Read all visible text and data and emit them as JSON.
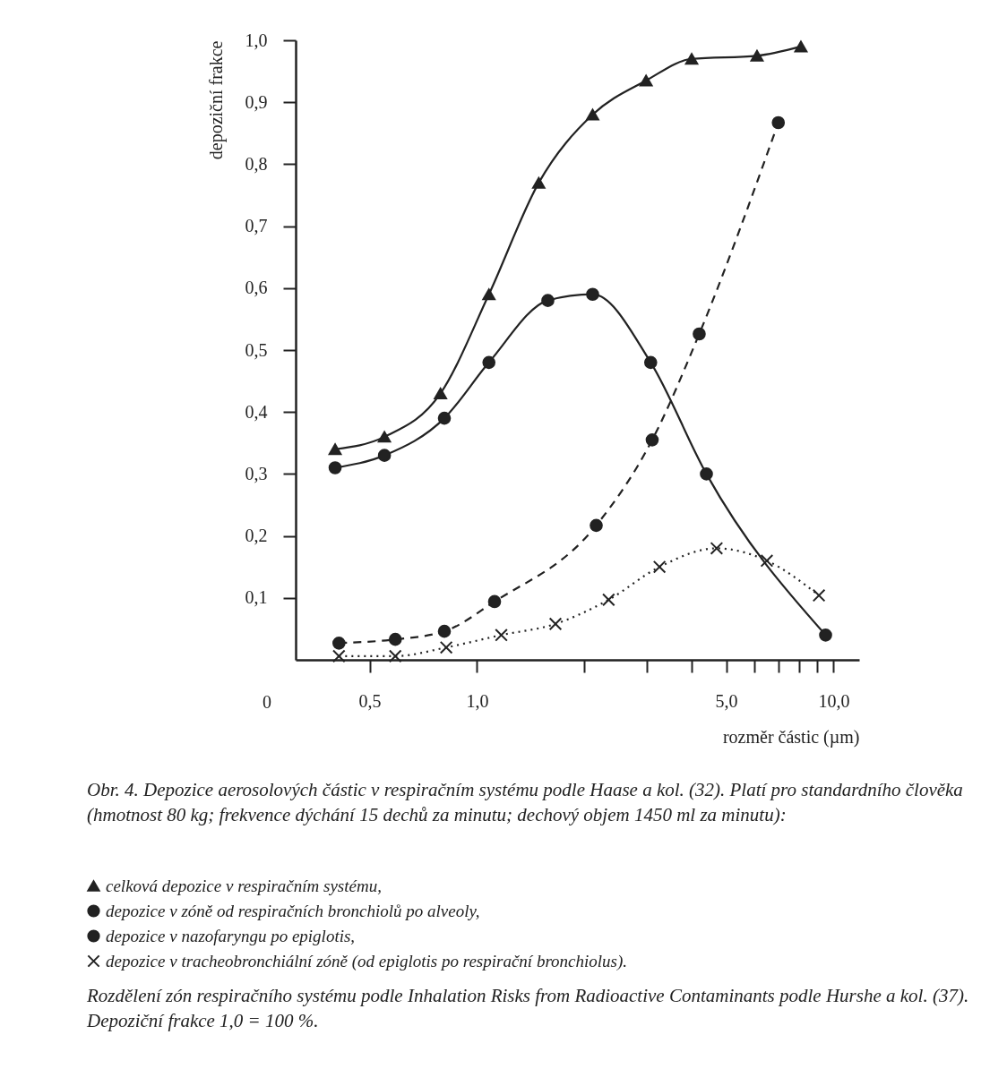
{
  "chart_data": {
    "type": "line",
    "xlabel": "rozměr částic (µm)",
    "ylabel": "depoziční frakce",
    "log": "x",
    "xlim": [
      0.31,
      11.8
    ],
    "ylim": [
      0,
      1
    ],
    "xticks": [
      {
        "value": 0.5,
        "label": "0,5"
      },
      {
        "value": 1,
        "label": "1,0"
      },
      {
        "value": 2,
        "label": null
      },
      {
        "value": 3,
        "label": null
      },
      {
        "value": 4,
        "label": null
      },
      {
        "value": 5,
        "label": "5,0"
      },
      {
        "value": 6,
        "label": null
      },
      {
        "value": 7,
        "label": null
      },
      {
        "value": 8,
        "label": null
      },
      {
        "value": 9,
        "label": null
      },
      {
        "value": 10,
        "label": "10,0"
      }
    ],
    "yticks": [
      {
        "value": 0.1,
        "label": "0,1"
      },
      {
        "value": 0.2,
        "label": "0,2"
      },
      {
        "value": 0.3,
        "label": "0,3"
      },
      {
        "value": 0.4,
        "label": "0,4"
      },
      {
        "value": 0.5,
        "label": "0,5"
      },
      {
        "value": 0.6,
        "label": "0,6"
      },
      {
        "value": 0.7,
        "label": "0,7"
      },
      {
        "value": 0.8,
        "label": "0,8"
      },
      {
        "value": 0.9,
        "label": "0,9"
      },
      {
        "value": 1,
        "label": "1,0"
      }
    ],
    "grid": false,
    "legend": "bottom",
    "series": [
      {
        "name": "celková depozice v respiračním systému,",
        "color": "#222222",
        "marker": "triangle",
        "line_style": "solid",
        "x": [
          0.4,
          0.55,
          0.79,
          1.08,
          1.49,
          2.11,
          2.98,
          4.0,
          6.1,
          8.1
        ],
        "values": [
          0.34,
          0.36,
          0.43,
          0.59,
          0.77,
          0.88,
          0.935,
          0.97,
          0.975,
          0.99
        ]
      },
      {
        "name": "depozice v zóně od respiračních bronchiolů po alveoly,",
        "color": "#222222",
        "marker": "circle",
        "line_style": "solid",
        "x": [
          0.4,
          0.55,
          0.81,
          1.08,
          1.58,
          2.11,
          3.07,
          4.4,
          9.5
        ],
        "values": [
          0.31,
          0.33,
          0.39,
          0.48,
          0.58,
          0.59,
          0.48,
          0.3,
          0.04
        ]
      },
      {
        "name": "depozice v nazofaryngu po epiglotis,",
        "color": "#222222",
        "marker": "circle",
        "line_style": "dashed",
        "x": [
          0.41,
          0.59,
          0.81,
          1.12,
          2.16,
          3.1,
          4.2,
          7.0
        ],
        "values": [
          0.027,
          0.033,
          0.046,
          0.094,
          0.217,
          0.355,
          0.526,
          0.867
        ]
      },
      {
        "name": "depozice v tracheobronchiální zóně (od epiglotis po respirační bronchiolus).",
        "color": "#222222",
        "marker": "cross",
        "line_style": "dotted",
        "x": [
          0.41,
          0.59,
          0.82,
          1.17,
          1.66,
          2.34,
          3.25,
          4.7,
          6.5,
          9.1
        ],
        "values": [
          0.006,
          0.006,
          0.02,
          0.04,
          0.058,
          0.097,
          0.15,
          0.18,
          0.16,
          0.104
        ]
      }
    ],
    "annotations": [
      "0",
      "Obr. 4. Depozice aerosolových částic v respiračním systému podle Haase a kol. (32). Platí pro standardního člověka (hmotnost 80 kg; frekvence dýchání 15 dechů za minutu; dechový objem 1450 ml za minutu):",
      "Rozdělení zón respiračního systému podle Inhalation Risks from Radioactive Contaminants podle Hurshe a kol. (37). Depoziční frakce 1,0 = 100 %."
    ]
  }
}
